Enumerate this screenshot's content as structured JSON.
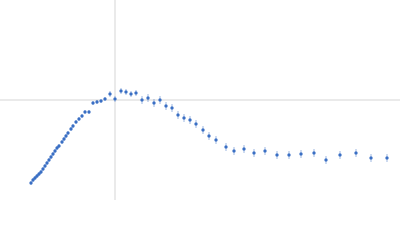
{
  "chart_data": {
    "type": "scatter",
    "x": [
      31,
      33,
      35,
      37,
      39,
      41,
      43,
      45,
      47,
      49,
      51,
      53,
      55,
      57,
      59,
      62,
      64,
      66,
      68,
      71,
      73,
      76,
      79,
      82,
      85,
      89,
      93,
      97,
      101,
      105,
      110,
      115,
      121,
      126,
      131,
      136,
      142,
      148,
      154,
      160,
      166,
      172,
      178,
      184,
      190,
      196,
      203,
      209,
      216,
      226,
      234,
      244,
      254,
      265,
      277,
      289,
      301,
      314,
      326,
      340,
      356,
      371,
      387
    ],
    "values": [
      17,
      20,
      22,
      24,
      26,
      28,
      31,
      34,
      37,
      40,
      43,
      46,
      49,
      52,
      54,
      58,
      61,
      64,
      67,
      71,
      74,
      78,
      81,
      84,
      88,
      88,
      97,
      98,
      99,
      101,
      106,
      101,
      109,
      108,
      106,
      107,
      100,
      102,
      97,
      100,
      94,
      92,
      85,
      82,
      80,
      76,
      70,
      64,
      60,
      53,
      49,
      51,
      47,
      49,
      45,
      45,
      46,
      47,
      40,
      45,
      47,
      42,
      42
    ],
    "errors": [
      2,
      2,
      2,
      2,
      2,
      2,
      2,
      2,
      2,
      2,
      2,
      2,
      2,
      2,
      2,
      2,
      2,
      2,
      2,
      2,
      2,
      2,
      2,
      2,
      2,
      2,
      2,
      2,
      2,
      2,
      3,
      3,
      3,
      3,
      3,
      3,
      4,
      4,
      4,
      4,
      4,
      4,
      4,
      4,
      4,
      4,
      4,
      4,
      4,
      4,
      4,
      4,
      4,
      4,
      4,
      4,
      4,
      4,
      4,
      4,
      4,
      4,
      4
    ],
    "color": "#3a6fc4",
    "xlim": [
      0,
      400
    ],
    "ylim": [
      0,
      200
    ],
    "hline": 100,
    "vline": 115
  }
}
